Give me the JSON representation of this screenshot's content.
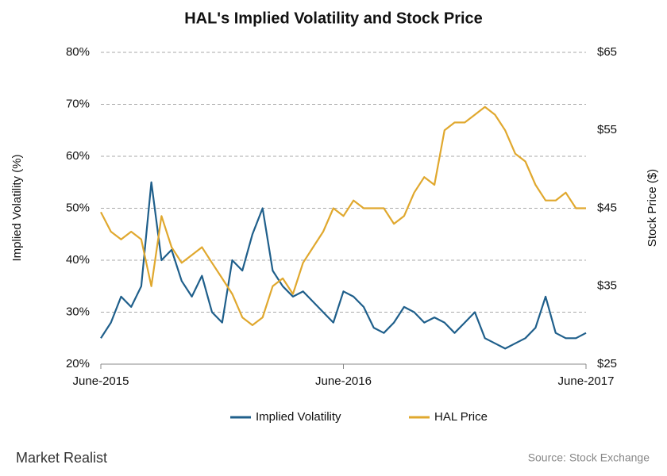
{
  "chart_data": {
    "type": "line",
    "title": "HAL's Implied Volatility and Stock Price",
    "y_label": "Implied Volatility (%)",
    "y2_label": "Stock Price ($)",
    "source": "Source:  Stock Exchange",
    "logo": "Market Realist",
    "x": [
      0,
      0.5,
      1,
      1.5,
      2,
      2.5,
      3,
      3.5,
      4,
      4.5,
      5,
      5.5,
      6,
      6.5,
      7,
      7.5,
      8,
      8.5,
      9,
      9.5,
      10,
      10.5,
      11,
      11.5,
      12,
      12.5,
      13,
      13.5,
      14,
      14.5,
      15,
      15.5,
      16,
      16.5,
      17,
      17.5,
      18,
      18.5,
      19,
      19.5,
      20,
      20.5,
      21,
      21.5,
      22,
      22.5,
      23,
      23.5,
      24
    ],
    "xlim": [
      0,
      24
    ],
    "xticks": [
      {
        "value": 0,
        "label": "June-2015"
      },
      {
        "value": 12,
        "label": "June-2016"
      },
      {
        "value": 24,
        "label": "June-2017"
      }
    ],
    "ylim": [
      20,
      80
    ],
    "yticks": [
      {
        "value": 20,
        "label": "20%"
      },
      {
        "value": 30,
        "label": "30%"
      },
      {
        "value": 40,
        "label": "40%"
      },
      {
        "value": 50,
        "label": "50%"
      },
      {
        "value": 60,
        "label": "60%"
      },
      {
        "value": 70,
        "label": "70%"
      },
      {
        "value": 80,
        "label": "80%"
      }
    ],
    "y2lim": [
      25,
      65
    ],
    "y2ticks": [
      {
        "value": 25,
        "label": "$25"
      },
      {
        "value": 35,
        "label": "$35"
      },
      {
        "value": 45,
        "label": "$45"
      },
      {
        "value": 55,
        "label": "$55"
      },
      {
        "value": 65,
        "label": "$65"
      }
    ],
    "grid": true,
    "legend": "bottom",
    "series": [
      {
        "name": "Implied Volatility",
        "color": "#1f5f8b",
        "values": [
          25,
          28,
          33,
          31,
          35,
          55,
          40,
          42,
          36,
          33,
          37,
          30,
          28,
          40,
          38,
          45,
          50,
          38,
          35,
          33,
          34,
          32,
          30,
          28,
          34,
          33,
          31,
          27,
          26,
          28,
          31,
          30,
          28,
          29,
          28,
          26,
          28,
          30,
          25,
          24,
          23,
          24,
          25,
          27,
          33,
          26,
          25,
          25,
          26
        ]
      },
      {
        "name": "HAL Price",
        "color": "#e0a82e",
        "axis": "y2",
        "values": [
          44.5,
          42,
          41,
          42,
          41,
          35,
          44,
          40,
          38,
          39,
          40,
          38,
          36,
          34,
          31,
          30,
          31,
          35,
          36,
          34,
          38,
          40,
          42,
          45,
          44,
          46,
          45,
          45,
          45,
          43,
          44,
          47,
          49,
          48,
          55,
          56,
          56,
          57,
          58,
          57,
          55,
          52,
          51,
          48,
          46,
          46,
          47,
          45,
          45
        ]
      }
    ]
  }
}
